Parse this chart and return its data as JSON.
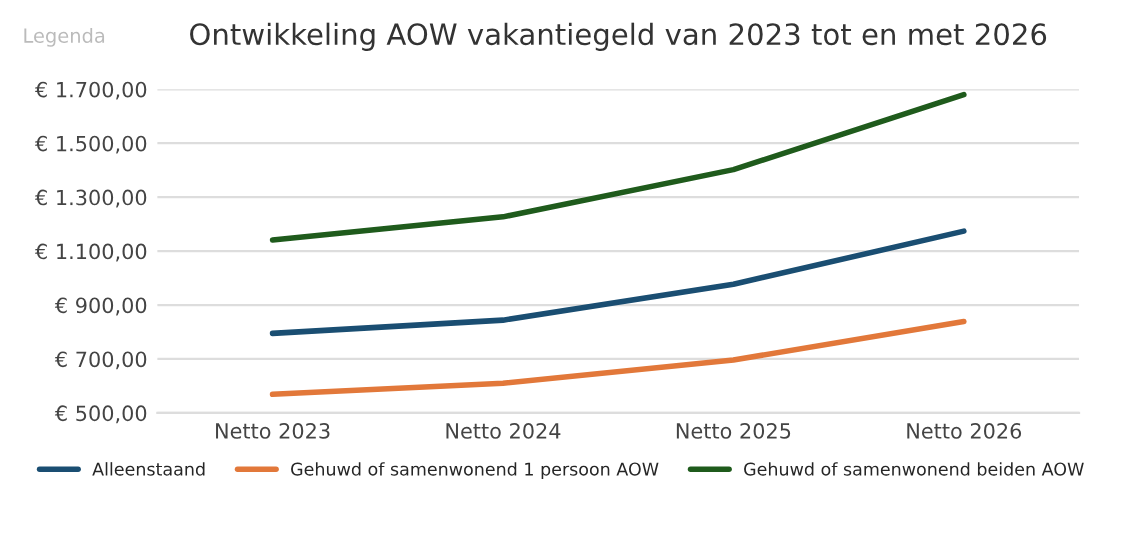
{
  "chart_data": {
    "type": "line",
    "title": "Ontwikkeling AOW vakantiegeld van 2023 tot en met 2026",
    "annotations": [
      "Legenda"
    ],
    "categories": [
      "Netto 2023",
      "Netto 2024",
      "Netto 2025",
      "Netto 2026"
    ],
    "series": [
      {
        "name": "Alleenstaand",
        "color": "#1a4e72",
        "values": [
          795,
          844,
          977,
          1174
        ]
      },
      {
        "name": "Gehuwd of samenwonend 1 persoon AOW",
        "color": "#e2783a",
        "values": [
          569,
          610,
          696,
          839
        ]
      },
      {
        "name": "Gehuwd of samenwonend beiden AOW",
        "color": "#1f5b1c",
        "values": [
          1141,
          1227,
          1402,
          1680
        ]
      }
    ],
    "ylim": [
      500,
      1700
    ],
    "yticks": [
      {
        "value": 500,
        "label": "€ 500,00"
      },
      {
        "value": 700,
        "label": "€ 700,00"
      },
      {
        "value": 900,
        "label": "€ 900,00"
      },
      {
        "value": 1100,
        "label": "€ 1.100,00"
      },
      {
        "value": 1300,
        "label": "€ 1.300,00"
      },
      {
        "value": 1500,
        "label": "€ 1.500,00"
      },
      {
        "value": 1700,
        "label": "€ 1.700,00"
      }
    ],
    "grid": "y",
    "legend": "bottom",
    "marker": "none",
    "line_style": "solid"
  }
}
